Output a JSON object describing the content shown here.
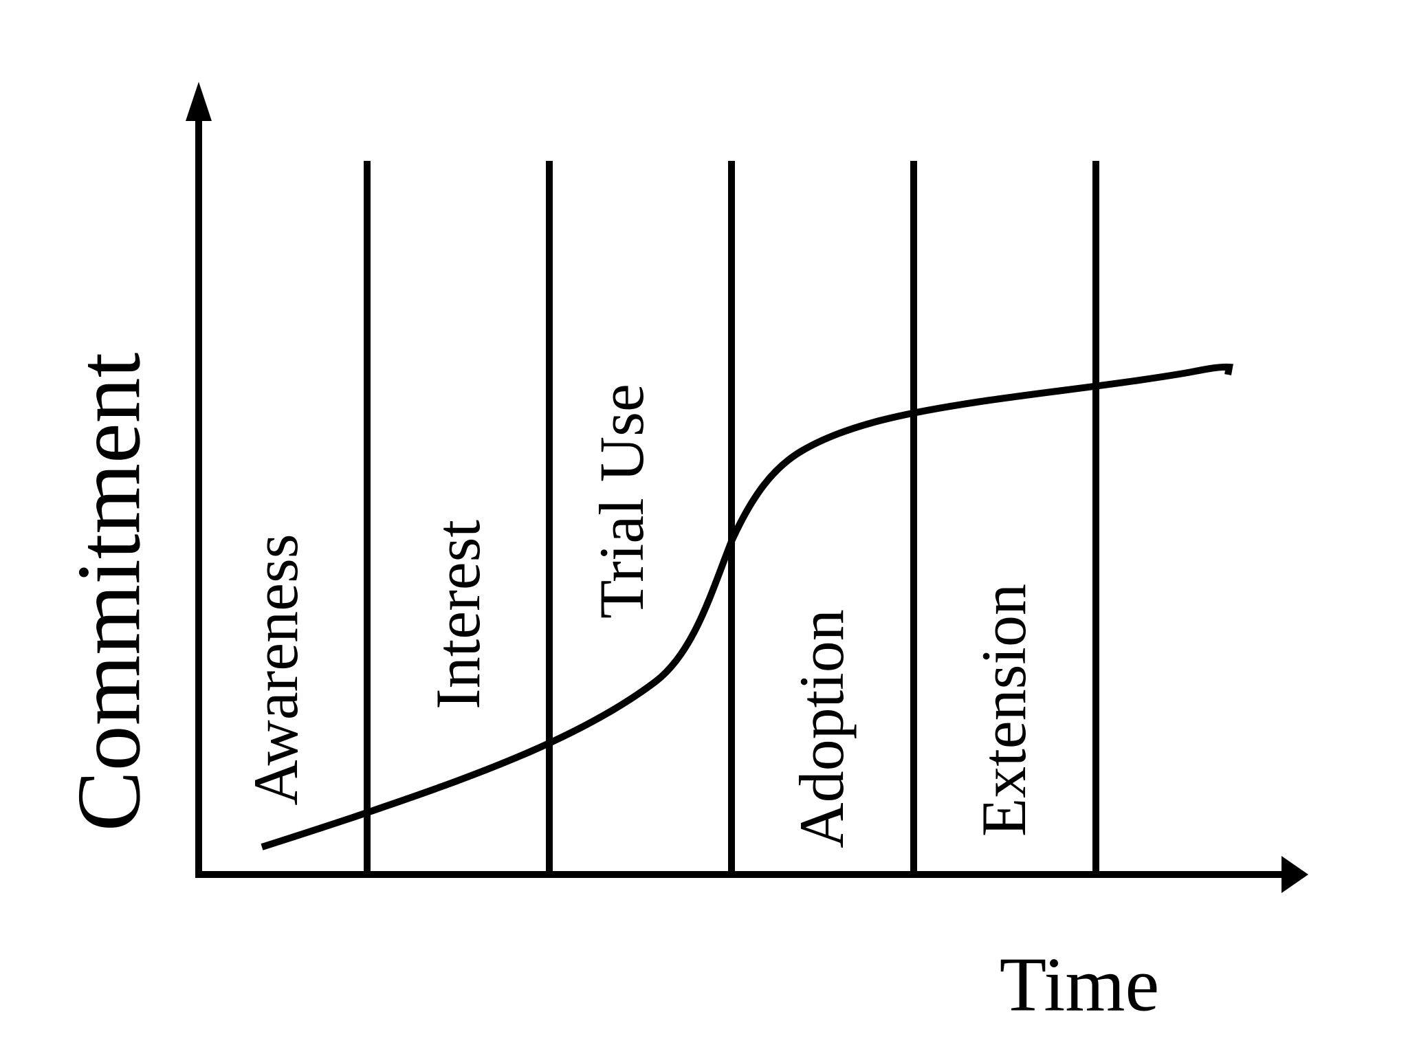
{
  "axes": {
    "y_label": "Commitment",
    "x_label": "Time"
  },
  "stages": [
    {
      "label": "Awareness"
    },
    {
      "label": "Interest"
    },
    {
      "label": "Trial Use"
    },
    {
      "label": "Adoption"
    },
    {
      "label": "Extension"
    }
  ]
}
